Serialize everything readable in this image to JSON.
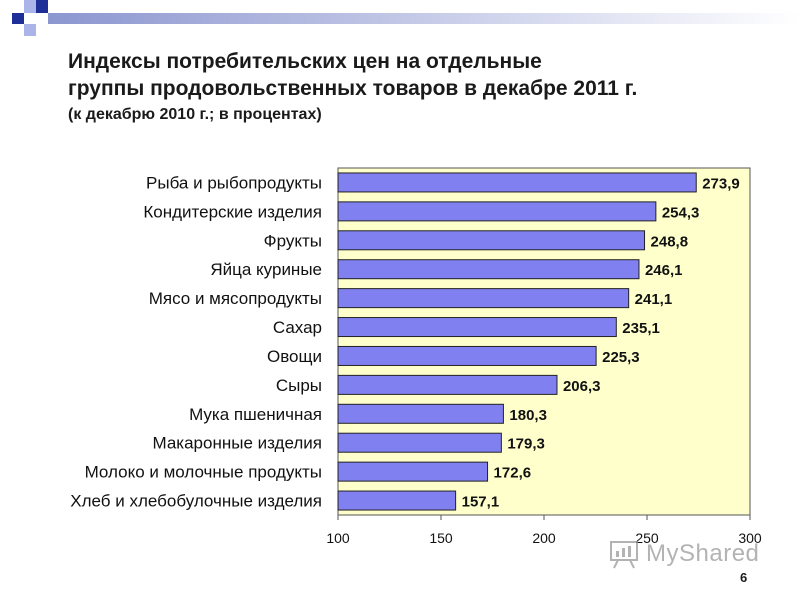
{
  "header": {
    "title_line1": "Индексы потребительских цен на отдельные",
    "title_line2": "группы продовольственных товаров в декабре 2011 г.",
    "subtitle": "(к декабрю 2010 г.; в процентах)"
  },
  "chart_data": {
    "type": "bar",
    "orientation": "horizontal",
    "categories": [
      "Рыба и рыбопродукты",
      "Кондитерские изделия",
      "Фрукты",
      "Яйца куриные",
      "Мясо и мясопродукты",
      "Сахар",
      "Овощи",
      "Сыры",
      "Мука пшеничная",
      "Макаронные изделия",
      "Молоко и молочные продукты",
      "Хлеб и хлебобулочные изделия"
    ],
    "values": [
      273.9,
      254.3,
      248.8,
      246.1,
      241.1,
      235.1,
      225.3,
      206.3,
      180.3,
      179.3,
      172.6,
      157.1
    ],
    "value_labels": [
      "273,9",
      "254,3",
      "248,8",
      "246,1",
      "241,1",
      "235,1",
      "225,3",
      "206,3",
      "180,3",
      "179,3",
      "172,6",
      "157,1"
    ],
    "xlim": [
      100,
      300
    ],
    "xticks": [
      100,
      150,
      200,
      250,
      300
    ],
    "grid": false,
    "bar_color": "#8080f0",
    "plot_background": "#ffffcc"
  },
  "watermark": {
    "text": "MyShared",
    "icon": "presentation-board-icon"
  },
  "page": {
    "number": "6"
  },
  "colors": {
    "corner_dark": "#1f2f9a",
    "corner_light": "#aab4e8",
    "corner_bar": "#c7cce8"
  }
}
